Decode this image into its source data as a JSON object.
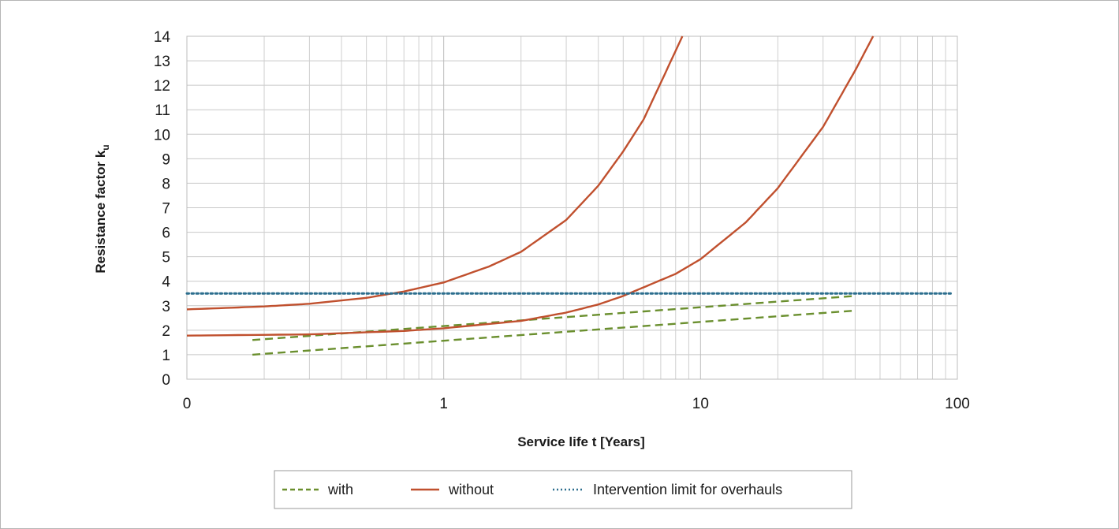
{
  "chart_data": {
    "type": "line",
    "x_scale": "log",
    "xlim": [
      0.1,
      100
    ],
    "ylim": [
      0,
      14
    ],
    "x_tick_labels": [
      {
        "value": 0.1,
        "label": "0"
      },
      {
        "value": 1,
        "label": "1"
      },
      {
        "value": 10,
        "label": "10"
      },
      {
        "value": 100,
        "label": "100"
      }
    ],
    "y_ticks": [
      0,
      1,
      2,
      3,
      4,
      5,
      6,
      7,
      8,
      9,
      10,
      11,
      12,
      13,
      14
    ],
    "xlabel": "Service life t [Years]",
    "ylabel": "Resistance factor k",
    "ylabel_subscript": "u",
    "grid": true,
    "legend_position": "bottom",
    "series": [
      {
        "name": "with",
        "style": "dashed",
        "color": "#6a8f2e",
        "x": [
          0.18,
          40
        ],
        "y": [
          1.0,
          2.8
        ]
      },
      {
        "name": "with",
        "style": "dashed",
        "color": "#6a8f2e",
        "legend": false,
        "x": [
          0.18,
          40
        ],
        "y": [
          1.6,
          3.4
        ]
      },
      {
        "name": "without",
        "style": "solid",
        "color": "#c0502e",
        "x": [
          0.1,
          0.2,
          0.3,
          0.5,
          0.7,
          1,
          1.5,
          2,
          3,
          4,
          5,
          6,
          7,
          8.5
        ],
        "y": [
          2.85,
          2.97,
          3.08,
          3.32,
          3.58,
          3.95,
          4.6,
          5.2,
          6.5,
          7.9,
          9.3,
          10.6,
          12.1,
          14.0
        ]
      },
      {
        "name": "without",
        "style": "solid",
        "color": "#c0502e",
        "legend": false,
        "x": [
          0.1,
          0.3,
          0.7,
          1,
          2,
          3,
          4,
          5,
          6,
          8,
          10,
          15,
          20,
          30,
          40,
          47
        ],
        "y": [
          1.78,
          1.83,
          1.97,
          2.08,
          2.38,
          2.72,
          3.05,
          3.4,
          3.75,
          4.3,
          4.9,
          6.4,
          7.8,
          10.3,
          12.6,
          14.0
        ]
      },
      {
        "name": "Intervention limit for overhauls",
        "style": "dotted",
        "color": "#2c6e8e",
        "x": [
          0.1,
          95
        ],
        "y": [
          3.5,
          3.5
        ]
      }
    ]
  },
  "legend": {
    "items": [
      {
        "label": "with",
        "color": "#6a8f2e",
        "style": "dashed"
      },
      {
        "label": "without",
        "color": "#c0502e",
        "style": "solid"
      },
      {
        "label": "Intervention limit for overhauls",
        "color": "#2c6e8e",
        "style": "dotted"
      }
    ]
  }
}
